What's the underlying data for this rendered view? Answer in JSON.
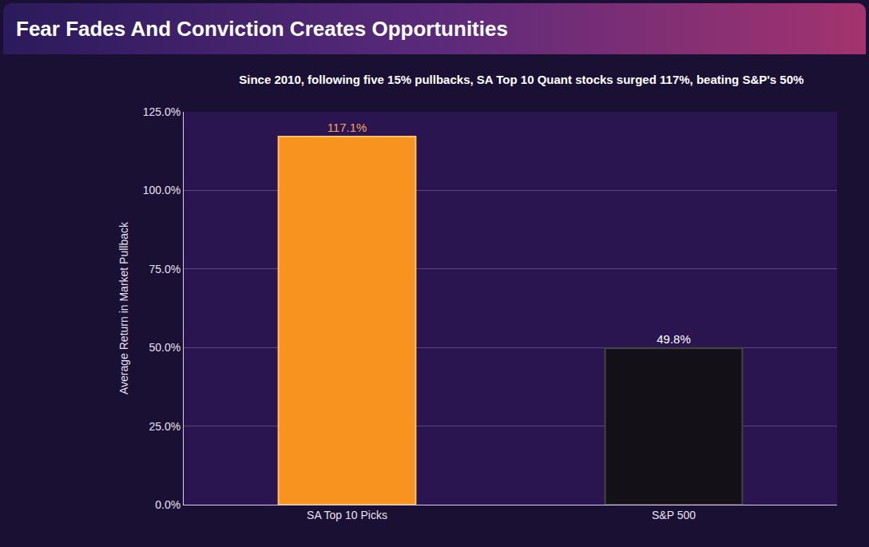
{
  "chart_data": {
    "type": "bar",
    "title": "Fear Fades And Conviction Creates Opportunities",
    "subtitle": "Since 2010, following five 15% pullbacks, SA Top 10 Quant stocks surged 117%, beating S&P's 50%",
    "y_label": "Average Return in Market Pullback",
    "categories": [
      "SA Top 10 Picks",
      "S&P 500"
    ],
    "values": [
      117.1,
      49.8
    ],
    "value_labels": [
      "117.1%",
      "49.8%"
    ],
    "colors": [
      "#f7931e",
      "#141018"
    ],
    "ylim": [
      0,
      125
    ],
    "yticks": [
      {
        "value": 0,
        "label": "0.0%"
      },
      {
        "value": 25,
        "label": "25.0%"
      },
      {
        "value": 50,
        "label": "50.0%"
      },
      {
        "value": 75,
        "label": "75.0%"
      },
      {
        "value": 100,
        "label": "100.0%"
      },
      {
        "value": 125,
        "label": "125.0%"
      }
    ],
    "grid": true,
    "data_labels": true
  }
}
